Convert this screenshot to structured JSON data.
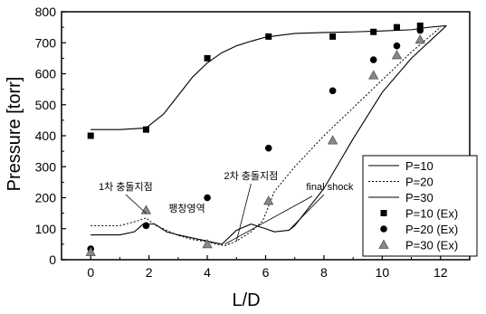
{
  "chart_data": {
    "type": "line",
    "title": "",
    "xlabel": "L/D",
    "ylabel": "Pressure [torr]",
    "xlim": [
      -1,
      13
    ],
    "ylim": [
      0,
      800
    ],
    "x_ticks": [
      0,
      2,
      4,
      6,
      8,
      10,
      12
    ],
    "y_ticks": [
      0,
      100,
      200,
      300,
      400,
      500,
      600,
      700,
      800
    ],
    "grid": false,
    "legend_position": "bottom-right",
    "series": [
      {
        "name": "P=10",
        "kind": "line",
        "style": "solid",
        "x": [
          0,
          1,
          1.9,
          2.5,
          3.0,
          3.5,
          4.0,
          4.5,
          5.0,
          5.5,
          6.0,
          7.0,
          8.0,
          9.0,
          10.0,
          11.0,
          11.6,
          12.2
        ],
        "y": [
          420,
          420,
          425,
          470,
          530,
          590,
          635,
          668,
          690,
          705,
          718,
          730,
          733,
          735,
          738,
          742,
          750,
          755
        ]
      },
      {
        "name": "P=20",
        "kind": "line",
        "style": "dotted",
        "x": [
          0,
          1.0,
          1.6,
          1.9,
          2.2,
          2.6,
          3.0,
          3.5,
          4.0,
          4.3,
          4.6,
          5.0,
          5.5,
          5.9,
          6.3,
          7.0,
          8.0,
          9.0,
          10.0,
          11.0,
          12.0
        ],
        "y": [
          110,
          110,
          125,
          135,
          112,
          95,
          78,
          65,
          58,
          50,
          45,
          60,
          90,
          125,
          220,
          300,
          400,
          490,
          580,
          670,
          750
        ]
      },
      {
        "name": "P=30",
        "kind": "line",
        "style": "solid",
        "x": [
          0,
          1.0,
          1.5,
          1.8,
          2.2,
          2.6,
          3.0,
          3.5,
          4.0,
          4.5,
          5.0,
          5.5,
          6.0,
          6.3,
          6.8,
          7.0,
          8.0,
          9.0,
          10.0,
          11.0,
          12.2
        ],
        "y": [
          80,
          80,
          90,
          115,
          115,
          90,
          80,
          70,
          60,
          50,
          95,
          115,
          100,
          90,
          95,
          110,
          230,
          390,
          540,
          650,
          755
        ]
      },
      {
        "name": "P=10 (Ex)",
        "kind": "marker",
        "marker": "square",
        "x": [
          0,
          1.9,
          4.0,
          6.1,
          8.3,
          9.7,
          10.5,
          11.3
        ],
        "y": [
          400,
          420,
          650,
          720,
          720,
          735,
          750,
          755
        ]
      },
      {
        "name": "P=20 (Ex)",
        "kind": "marker",
        "marker": "circle",
        "x": [
          0,
          1.9,
          4.0,
          6.1,
          8.3,
          9.7,
          10.5,
          11.3
        ],
        "y": [
          35,
          110,
          200,
          360,
          545,
          645,
          690,
          740
        ]
      },
      {
        "name": "P=30 (Ex)",
        "kind": "marker",
        "marker": "triangle",
        "x": [
          0,
          1.9,
          4.0,
          6.1,
          8.3,
          9.7,
          10.5,
          11.3
        ],
        "y": [
          25,
          160,
          50,
          190,
          385,
          595,
          660,
          710
        ]
      }
    ],
    "annotations": [
      {
        "text": "1차 충돌지점",
        "x": 1.2,
        "y": 225
      },
      {
        "text": "팽창영역",
        "x": 3.3,
        "y": 155
      },
      {
        "text": "2차 충돌지점",
        "x": 5.5,
        "y": 260
      },
      {
        "text": "final shock",
        "x": 8.2,
        "y": 225
      }
    ]
  }
}
